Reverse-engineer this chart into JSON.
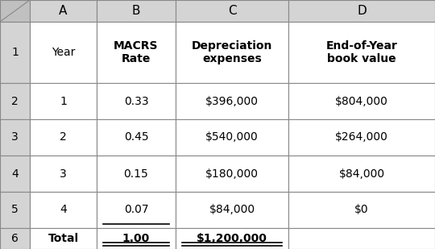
{
  "col_letters": [
    "",
    "A",
    "B",
    "C",
    "D"
  ],
  "header_labels": [
    "Year",
    "MACRS\nRate",
    "Depreciation\nexpenses",
    "End-of-Year\nbook value"
  ],
  "data_rows": [
    [
      "1",
      "0.33",
      "$396,000",
      "$804,000"
    ],
    [
      "2",
      "0.45",
      "$540,000",
      "$264,000"
    ],
    [
      "3",
      "0.15",
      "$180,000",
      "$84,000"
    ],
    [
      "4",
      "0.07",
      "$84,000",
      "$0"
    ],
    [
      "Total",
      "1.00",
      "$1,200,000",
      ""
    ]
  ],
  "row_numbers": [
    "",
    "1",
    "2",
    "3",
    "4",
    "5",
    "6"
  ],
  "header_bg": "#d4d4d4",
  "cell_bg": "#ffffff",
  "border_color": "#888888",
  "text_color": "#000000",
  "corner_bg": "#c0c0c0"
}
